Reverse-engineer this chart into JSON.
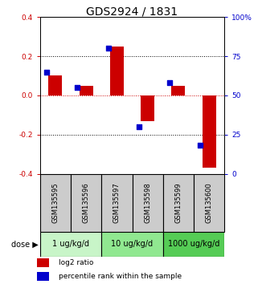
{
  "title": "GDS2924 / 1831",
  "samples": [
    "GSM135595",
    "GSM135596",
    "GSM135597",
    "GSM135598",
    "GSM135599",
    "GSM135600"
  ],
  "log2_ratio": [
    0.1,
    0.05,
    0.25,
    -0.13,
    0.05,
    -0.37
  ],
  "percentile": [
    65,
    55,
    80,
    30,
    58,
    18
  ],
  "ylim_left": [
    -0.4,
    0.4
  ],
  "ylim_right": [
    0,
    100
  ],
  "yticks_left": [
    -0.4,
    -0.2,
    0.0,
    0.2,
    0.4
  ],
  "yticks_right": [
    0,
    25,
    50,
    75,
    100
  ],
  "dose_groups": [
    {
      "label": "1 ug/kg/d",
      "samples": [
        0,
        1
      ],
      "color": "#c8f5c8"
    },
    {
      "label": "10 ug/kg/d",
      "samples": [
        2,
        3
      ],
      "color": "#90e890"
    },
    {
      "label": "1000 ug/kg/d",
      "samples": [
        4,
        5
      ],
      "color": "#55cc55"
    }
  ],
  "bar_color": "#cc0000",
  "square_color": "#0000cc",
  "bar_width": 0.45,
  "square_size": 18,
  "zero_line_color": "#cc0000",
  "sample_bg_color": "#cccccc",
  "dose_label": "dose",
  "legend_red": "log2 ratio",
  "legend_blue": "percentile rank within the sample",
  "title_fontsize": 10,
  "tick_fontsize": 6.5,
  "sample_fontsize": 6,
  "dose_fontsize": 7,
  "legend_fontsize": 6.5
}
